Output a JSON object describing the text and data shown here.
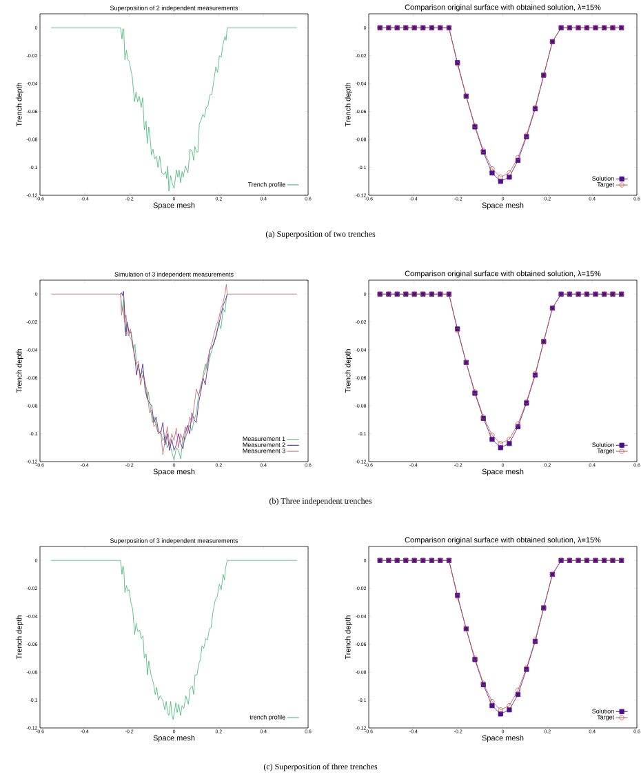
{
  "chart_data": [
    {
      "type": "line",
      "title": "Superposition of 2 independent measurements",
      "xlabel": "Space mesh",
      "ylabel": "Trench depth",
      "xlim": [
        -0.6,
        0.6
      ],
      "ylim": [
        -0.12,
        0.01
      ],
      "xticks": [
        -0.6,
        -0.4,
        -0.2,
        0,
        0.2,
        0.4,
        0.6
      ],
      "yticks": [
        -0.12,
        -0.1,
        -0.08,
        -0.06,
        -0.04,
        -0.02,
        0
      ],
      "legend": "bottom right",
      "annotations": [
        "(a)  Superposition of two trenches"
      ],
      "series": [
        {
          "name": "Trench profile",
          "color": "#3cb371",
          "x": [
            -0.55,
            -0.239,
            -0.233,
            -0.229,
            -0.225,
            -0.22,
            -0.213,
            -0.207,
            -0.2,
            -0.195,
            -0.187,
            -0.177,
            -0.17,
            -0.163,
            -0.156,
            -0.147,
            -0.14,
            -0.133,
            -0.125,
            -0.12,
            -0.113,
            -0.107,
            -0.101,
            -0.094,
            -0.087,
            -0.079,
            -0.072,
            -0.064,
            -0.055,
            -0.045,
            -0.037,
            -0.033,
            -0.028,
            -0.023,
            -0.015,
            -0.007,
            0,
            0.006,
            0.011,
            0.017,
            0.023,
            0.029,
            0.036,
            0.041,
            0.051,
            0.062,
            0.072,
            0.082,
            0.088,
            0.093,
            0.101,
            0.107,
            0.113,
            0.121,
            0.129,
            0.136,
            0.144,
            0.152,
            0.16,
            0.169,
            0.177,
            0.187,
            0.195,
            0.203,
            0.211,
            0.219,
            0.228,
            0.233,
            0.238,
            0.55
          ],
          "values": [
            0,
            0,
            -0.008,
            -0.001,
            -0.001,
            -0.023,
            -0.016,
            -0.023,
            -0.024,
            -0.029,
            -0.035,
            -0.053,
            -0.046,
            -0.053,
            -0.049,
            -0.057,
            -0.05,
            -0.073,
            -0.067,
            -0.083,
            -0.071,
            -0.079,
            -0.091,
            -0.087,
            -0.094,
            -0.092,
            -0.1,
            -0.092,
            -0.104,
            -0.105,
            -0.103,
            -0.108,
            -0.099,
            -0.117,
            -0.106,
            -0.112,
            -0.115,
            -0.108,
            -0.102,
            -0.107,
            -0.102,
            -0.111,
            -0.103,
            -0.107,
            -0.099,
            -0.104,
            -0.087,
            -0.089,
            -0.095,
            -0.085,
            -0.089,
            -0.089,
            -0.069,
            -0.066,
            -0.062,
            -0.064,
            -0.057,
            -0.056,
            -0.048,
            -0.048,
            -0.039,
            -0.028,
            -0.032,
            -0.02,
            -0.021,
            -0.012,
            -0.006,
            -0.009,
            0,
            0
          ]
        }
      ]
    },
    {
      "type": "line",
      "title": "Comparison original surface with obtained solution, λ=15%",
      "xlabel": "Space mesh",
      "ylabel": "Trench depth",
      "xlim": [
        -0.6,
        0.6
      ],
      "ylim": [
        -0.12,
        0.01
      ],
      "xticks": [
        -0.6,
        -0.4,
        -0.2,
        0,
        0.2,
        0.4,
        0.6
      ],
      "yticks": [
        -0.12,
        -0.1,
        -0.08,
        -0.06,
        -0.04,
        -0.02,
        0
      ],
      "legend": "bottom right",
      "x": [
        -0.55,
        -0.511,
        -0.473,
        -0.434,
        -0.396,
        -0.357,
        -0.318,
        -0.28,
        -0.241,
        -0.203,
        -0.164,
        -0.125,
        -0.087,
        -0.048,
        -0.01,
        0.029,
        0.068,
        0.106,
        0.145,
        0.183,
        0.222,
        0.261,
        0.299,
        0.338,
        0.376,
        0.415,
        0.454,
        0.492,
        0.531
      ],
      "series": [
        {
          "name": "Solution",
          "color": "#4b0f8c",
          "marker": "square",
          "values": [
            0,
            0,
            0,
            0,
            0,
            0,
            0,
            0,
            0,
            -0.025,
            -0.049,
            -0.071,
            -0.089,
            -0.104,
            -0.11,
            -0.107,
            -0.095,
            -0.078,
            -0.058,
            -0.034,
            -0.01,
            0,
            0,
            0,
            0,
            0,
            0,
            0,
            0
          ]
        },
        {
          "name": "Target",
          "color": "#c0504d",
          "marker": "circle",
          "values": [
            0,
            0,
            0,
            0,
            0,
            0,
            0,
            0,
            0,
            -0.026,
            -0.049,
            -0.07,
            -0.088,
            -0.101,
            -0.107,
            -0.104,
            -0.093,
            -0.077,
            -0.057,
            -0.034,
            -0.01,
            0,
            0,
            0,
            0,
            0,
            0,
            0,
            0
          ]
        }
      ]
    },
    {
      "type": "line",
      "title": "Simulation of 3 independent measurements",
      "xlabel": "Space mesh",
      "ylabel": "Trench depth",
      "xlim": [
        -0.6,
        0.6
      ],
      "ylim": [
        -0.12,
        0.01
      ],
      "xticks": [
        -0.6,
        -0.4,
        -0.2,
        0,
        0.2,
        0.4,
        0.6
      ],
      "yticks": [
        -0.12,
        -0.1,
        -0.08,
        -0.06,
        -0.04,
        -0.02,
        0
      ],
      "legend": "bottom right",
      "annotations": [
        "(b)  Three independent trenches"
      ],
      "series": [
        {
          "name": "Measurement 1",
          "color": "#3cb371",
          "x": [
            -0.239,
            -0.232,
            -0.225,
            -0.219,
            -0.21,
            -0.2,
            -0.19,
            -0.182,
            -0.175,
            -0.168,
            -0.16,
            -0.15,
            -0.14,
            -0.13,
            -0.12,
            -0.115,
            -0.105,
            -0.097,
            -0.088,
            -0.08,
            -0.07,
            -0.06,
            -0.05,
            -0.04,
            -0.03,
            -0.02,
            -0.01,
            0,
            0.01,
            0.02,
            0.03,
            0.04,
            0.05,
            0.06,
            0.07,
            0.08,
            0.09,
            0.1,
            0.11,
            0.12,
            0.13,
            0.14,
            0.15,
            0.16,
            0.17,
            0.18,
            0.19,
            0.2,
            0.21,
            0.22,
            0.228,
            0.235,
            0.238
          ],
          "values": [
            0,
            -0.012,
            -0.004,
            -0.027,
            -0.02,
            -0.03,
            -0.033,
            -0.04,
            -0.036,
            -0.05,
            -0.052,
            -0.058,
            -0.055,
            -0.063,
            -0.075,
            -0.07,
            -0.082,
            -0.092,
            -0.088,
            -0.095,
            -0.1,
            -0.098,
            -0.105,
            -0.102,
            -0.11,
            -0.106,
            -0.113,
            -0.119,
            -0.11,
            -0.112,
            -0.118,
            -0.102,
            -0.104,
            -0.098,
            -0.094,
            -0.098,
            -0.09,
            -0.085,
            -0.072,
            -0.068,
            -0.058,
            -0.05,
            -0.055,
            -0.045,
            -0.04,
            -0.033,
            -0.03,
            -0.02,
            -0.025,
            -0.01,
            -0.013,
            -0.002,
            0
          ]
        },
        {
          "name": "Measurement 2",
          "color": "#4b0f8c",
          "x": [
            -0.239,
            -0.235,
            -0.23,
            -0.226,
            -0.222,
            -0.215,
            -0.21,
            -0.2,
            -0.193,
            -0.185,
            -0.175,
            -0.168,
            -0.16,
            -0.15,
            -0.14,
            -0.13,
            -0.12,
            -0.11,
            -0.1,
            -0.09,
            -0.08,
            -0.07,
            -0.06,
            -0.05,
            -0.04,
            -0.03,
            -0.02,
            -0.01,
            0,
            0.01,
            0.02,
            0.03,
            0.04,
            0.05,
            0.06,
            0.07,
            0.08,
            0.09,
            0.1,
            0.11,
            0.12,
            0.13,
            0.14,
            0.15,
            0.16,
            0.17,
            0.18,
            0.19,
            0.2,
            0.21,
            0.22,
            0.228,
            0.235,
            0.238
          ],
          "values": [
            0,
            0.001,
            -0.001,
            0.002,
            -0.01,
            -0.03,
            -0.02,
            -0.028,
            -0.027,
            -0.036,
            -0.045,
            -0.058,
            -0.05,
            -0.06,
            -0.05,
            -0.068,
            -0.075,
            -0.078,
            -0.08,
            -0.092,
            -0.088,
            -0.098,
            -0.1,
            -0.092,
            -0.108,
            -0.1,
            -0.112,
            -0.104,
            -0.112,
            -0.108,
            -0.1,
            -0.107,
            -0.111,
            -0.1,
            -0.094,
            -0.1,
            -0.085,
            -0.09,
            -0.092,
            -0.078,
            -0.07,
            -0.06,
            -0.065,
            -0.052,
            -0.04,
            -0.038,
            -0.035,
            -0.028,
            -0.022,
            -0.015,
            -0.008,
            -0.005,
            -0.002,
            0
          ]
        },
        {
          "name": "Measurement 3",
          "color": "#c8606a",
          "x": [
            -0.55,
            -0.239,
            -0.235,
            -0.228,
            -0.222,
            -0.215,
            -0.205,
            -0.195,
            -0.185,
            -0.178,
            -0.17,
            -0.16,
            -0.15,
            -0.14,
            -0.13,
            -0.12,
            -0.11,
            -0.1,
            -0.09,
            -0.08,
            -0.07,
            -0.06,
            -0.05,
            -0.04,
            -0.03,
            -0.02,
            -0.01,
            0,
            0.01,
            0.02,
            0.03,
            0.04,
            0.05,
            0.06,
            0.07,
            0.08,
            0.09,
            0.1,
            0.11,
            0.12,
            0.13,
            0.14,
            0.15,
            0.16,
            0.17,
            0.18,
            0.19,
            0.2,
            0.21,
            0.22,
            0.23,
            0.234,
            0.238,
            0.55
          ],
          "values": [
            0,
            0,
            -0.015,
            -0.008,
            -0.02,
            -0.015,
            -0.03,
            -0.025,
            -0.035,
            -0.045,
            -0.05,
            -0.048,
            -0.065,
            -0.058,
            -0.063,
            -0.07,
            -0.085,
            -0.083,
            -0.095,
            -0.093,
            -0.1,
            -0.098,
            -0.115,
            -0.105,
            -0.095,
            -0.108,
            -0.1,
            -0.105,
            -0.096,
            -0.11,
            -0.1,
            -0.105,
            -0.095,
            -0.1,
            -0.088,
            -0.092,
            -0.08,
            -0.068,
            -0.073,
            -0.065,
            -0.06,
            -0.055,
            -0.047,
            -0.04,
            -0.035,
            -0.028,
            -0.022,
            -0.018,
            -0.01,
            -0.006,
            0.002,
            0.007,
            0,
            0
          ]
        }
      ]
    },
    {
      "type": "line",
      "title": "Comparison original surface with obtained solution, λ=15%",
      "xlabel": "Space mesh",
      "ylabel": "Trench depth",
      "xlim": [
        -0.6,
        0.6
      ],
      "ylim": [
        -0.12,
        0.01
      ],
      "xticks": [
        -0.6,
        -0.4,
        -0.2,
        0,
        0.2,
        0.4,
        0.6
      ],
      "yticks": [
        -0.12,
        -0.1,
        -0.08,
        -0.06,
        -0.04,
        -0.02,
        0
      ],
      "legend": "bottom right",
      "x": [
        -0.55,
        -0.511,
        -0.473,
        -0.434,
        -0.396,
        -0.357,
        -0.318,
        -0.28,
        -0.241,
        -0.203,
        -0.164,
        -0.125,
        -0.087,
        -0.048,
        -0.01,
        0.029,
        0.068,
        0.106,
        0.145,
        0.183,
        0.222,
        0.261,
        0.299,
        0.338,
        0.376,
        0.415,
        0.454,
        0.492,
        0.531
      ],
      "series": [
        {
          "name": "Solution",
          "color": "#4b0f8c",
          "marker": "square",
          "values": [
            0,
            0,
            0,
            0,
            0,
            0,
            0,
            0,
            0,
            -0.025,
            -0.049,
            -0.071,
            -0.089,
            -0.104,
            -0.11,
            -0.107,
            -0.095,
            -0.078,
            -0.058,
            -0.034,
            -0.01,
            0,
            0,
            0,
            0,
            0,
            0,
            0,
            0
          ]
        },
        {
          "name": "Target",
          "color": "#c0504d",
          "marker": "circle",
          "values": [
            0,
            0,
            0,
            0,
            0,
            0,
            0,
            0,
            0,
            -0.026,
            -0.049,
            -0.07,
            -0.088,
            -0.101,
            -0.107,
            -0.104,
            -0.093,
            -0.077,
            -0.057,
            -0.034,
            -0.01,
            0,
            0,
            0,
            0,
            0,
            0,
            0,
            0
          ]
        }
      ]
    },
    {
      "type": "line",
      "title": "Superposition of 3 independent measurements",
      "xlabel": "Space mesh",
      "ylabel": "Trench depth",
      "xlim": [
        -0.6,
        0.6
      ],
      "ylim": [
        -0.12,
        0.01
      ],
      "xticks": [
        -0.6,
        -0.4,
        -0.2,
        0,
        0.2,
        0.4,
        0.6
      ],
      "yticks": [
        -0.12,
        -0.1,
        -0.08,
        -0.06,
        -0.04,
        -0.02,
        0
      ],
      "legend": "bottom right",
      "annotations": [
        "(c)  Superposition of three trenches"
      ],
      "series": [
        {
          "name": "trench profile",
          "color": "#3cb371",
          "x": [
            -0.55,
            -0.239,
            -0.233,
            -0.229,
            -0.225,
            -0.22,
            -0.213,
            -0.207,
            -0.201,
            -0.193,
            -0.185,
            -0.176,
            -0.17,
            -0.162,
            -0.154,
            -0.146,
            -0.139,
            -0.133,
            -0.125,
            -0.119,
            -0.113,
            -0.103,
            -0.092,
            -0.084,
            -0.078,
            -0.07,
            -0.062,
            -0.051,
            -0.041,
            -0.035,
            -0.029,
            -0.023,
            -0.015,
            -0.01,
            -0.004,
            0.002,
            0.008,
            0.014,
            0.021,
            0.029,
            0.036,
            0.044,
            0.053,
            0.064,
            0.072,
            0.082,
            0.088,
            0.094,
            0.103,
            0.111,
            0.118,
            0.125,
            0.133,
            0.142,
            0.15,
            0.158,
            0.166,
            0.174,
            0.185,
            0.193,
            0.203,
            0.211,
            0.22,
            0.226,
            0.23,
            0.238,
            0.55
          ],
          "values": [
            0,
            0,
            -0.01,
            -0.004,
            -0.005,
            -0.023,
            -0.018,
            -0.022,
            -0.021,
            -0.03,
            -0.035,
            -0.053,
            -0.045,
            -0.051,
            -0.05,
            -0.056,
            -0.054,
            -0.07,
            -0.067,
            -0.082,
            -0.072,
            -0.082,
            -0.088,
            -0.096,
            -0.091,
            -0.1,
            -0.097,
            -0.1,
            -0.107,
            -0.101,
            -0.109,
            -0.111,
            -0.101,
            -0.11,
            -0.114,
            -0.108,
            -0.102,
            -0.109,
            -0.103,
            -0.111,
            -0.104,
            -0.106,
            -0.097,
            -0.103,
            -0.092,
            -0.09,
            -0.096,
            -0.082,
            -0.082,
            -0.074,
            -0.071,
            -0.061,
            -0.063,
            -0.056,
            -0.057,
            -0.049,
            -0.048,
            -0.037,
            -0.028,
            -0.026,
            -0.017,
            -0.021,
            -0.01,
            -0.014,
            -0.006,
            0,
            0
          ]
        }
      ]
    },
    {
      "type": "line",
      "title": "Comparison original surface with obtained solution, λ=15%",
      "xlabel": "Space mesh",
      "ylabel": "Trench depth",
      "xlim": [
        -0.6,
        0.6
      ],
      "ylim": [
        -0.12,
        0.01
      ],
      "xticks": [
        -0.6,
        -0.4,
        -0.2,
        0,
        0.2,
        0.4,
        0.6
      ],
      "yticks": [
        -0.12,
        -0.1,
        -0.08,
        -0.06,
        -0.04,
        -0.02,
        0
      ],
      "legend": "bottom right",
      "x": [
        -0.55,
        -0.511,
        -0.473,
        -0.434,
        -0.396,
        -0.357,
        -0.318,
        -0.28,
        -0.241,
        -0.203,
        -0.164,
        -0.125,
        -0.087,
        -0.048,
        -0.01,
        0.029,
        0.068,
        0.106,
        0.145,
        0.183,
        0.222,
        0.261,
        0.299,
        0.338,
        0.376,
        0.415,
        0.454,
        0.492,
        0.531
      ],
      "series": [
        {
          "name": "Solution",
          "color": "#4b0f8c",
          "marker": "square",
          "values": [
            0,
            0,
            0,
            0,
            0,
            0,
            0,
            0,
            0,
            -0.025,
            -0.049,
            -0.071,
            -0.089,
            -0.104,
            -0.11,
            -0.107,
            -0.096,
            -0.078,
            -0.058,
            -0.034,
            -0.01,
            0,
            0,
            0,
            0,
            0,
            0,
            0,
            0
          ]
        },
        {
          "name": "Target",
          "color": "#c0504d",
          "marker": "circle",
          "values": [
            0,
            0,
            0,
            0,
            0,
            0,
            0,
            0,
            0,
            -0.026,
            -0.049,
            -0.07,
            -0.088,
            -0.101,
            -0.107,
            -0.104,
            -0.093,
            -0.077,
            -0.057,
            -0.034,
            -0.01,
            0,
            0,
            0,
            0,
            0,
            0,
            0,
            0
          ]
        }
      ]
    }
  ]
}
